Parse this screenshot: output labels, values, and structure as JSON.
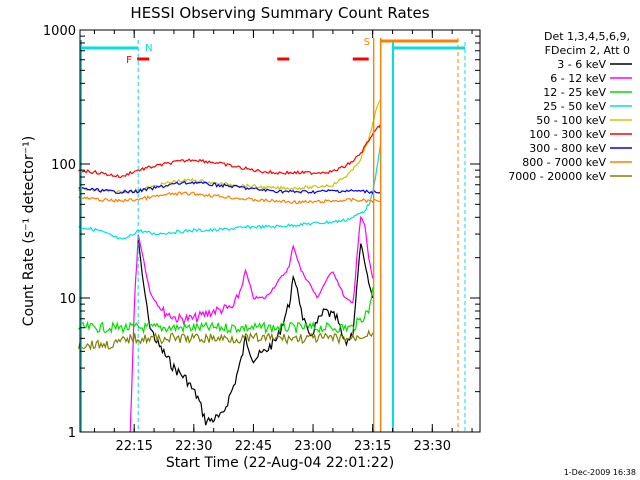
{
  "chart_data": {
    "type": "line",
    "title": "HESSI Observing Summary Count Rates",
    "xlabel": "Start Time (22-Aug-04 22:01:22)",
    "ylabel": "Count Rate (s⁻¹ detector⁻¹)",
    "yscale": "log",
    "xlim": [
      "22:01:22",
      "23:42:00"
    ],
    "ylim": [
      1,
      1000
    ],
    "x_tick_labels": [
      "22:15",
      "22:30",
      "22:45",
      "23:00",
      "23:15",
      "23:30"
    ],
    "y_tick_labels": [
      "1",
      "10",
      "100",
      "1000"
    ],
    "legend_header": [
      "Det 1,3,4,5,6,9,",
      "FDecim 2, Att 0"
    ],
    "legend_position": "right",
    "series": [
      {
        "name": "3 - 6 keV",
        "color": "#000000",
        "x": [
          "22:16",
          "22:17",
          "22:19",
          "22:21",
          "22:25",
          "22:28",
          "22:31",
          "22:33",
          "22:37",
          "22:40",
          "22:42",
          "22:43",
          "22:45",
          "22:48",
          "22:51",
          "22:54",
          "22:55",
          "22:56",
          "22:57",
          "22:59",
          "23:01",
          "23:03",
          "23:06",
          "23:08",
          "23:10",
          "23:11",
          "23:12",
          "23:13",
          "23:14",
          "23:15"
        ],
        "y": [
          28,
          15,
          6,
          4.5,
          3,
          2.5,
          1.8,
          1.2,
          1.3,
          2.2,
          3.5,
          5,
          3.5,
          4,
          5,
          9,
          14,
          12,
          8,
          5,
          6.5,
          8,
          7,
          4.5,
          5.5,
          12,
          26,
          18,
          13,
          10
        ]
      },
      {
        "name": "6 - 12 keV",
        "color": "#ff00ff",
        "x": [
          "22:14",
          "22:15",
          "22:16",
          "22:17",
          "22:19",
          "22:22",
          "22:26",
          "22:30",
          "22:35",
          "22:40",
          "22:42",
          "22:43",
          "22:45",
          "22:48",
          "22:51",
          "22:54",
          "22:55",
          "22:57",
          "22:59",
          "23:01",
          "23:03",
          "23:05",
          "23:08",
          "23:10",
          "23:11",
          "23:12",
          "23:13",
          "23:14",
          "23:15"
        ],
        "y": [
          1,
          8,
          30,
          22,
          11,
          8,
          7,
          7,
          8,
          8.5,
          12,
          16,
          10,
          10,
          13,
          17,
          25,
          16,
          13,
          10,
          13,
          16,
          10,
          9,
          20,
          40,
          35,
          20,
          14
        ]
      },
      {
        "name": "12 - 25 keV",
        "color": "#00e000",
        "x": [
          "22:01",
          "22:10",
          "22:14",
          "22:20",
          "22:30",
          "22:40",
          "22:50",
          "23:00",
          "23:10",
          "23:14",
          "23:15"
        ],
        "y": [
          6,
          6,
          6,
          6,
          6,
          6,
          6,
          6,
          6,
          8,
          12
        ]
      },
      {
        "name": "25 - 50 keV",
        "color": "#00e0e0",
        "x": [
          "22:01",
          "22:06",
          "22:12",
          "22:14",
          "22:16",
          "22:20",
          "22:25",
          "22:30",
          "22:35",
          "22:40",
          "22:45",
          "22:50",
          "22:55",
          "23:00",
          "23:05",
          "23:08",
          "23:10",
          "23:12",
          "23:13",
          "23:14",
          "23:15",
          "23:16",
          "23:17"
        ],
        "y": [
          34,
          32,
          27,
          29,
          32,
          30,
          31,
          32,
          32,
          33,
          34,
          34,
          35,
          36,
          37,
          38,
          40,
          43,
          45,
          50,
          60,
          90,
          140
        ]
      },
      {
        "name": "50 - 100 keV",
        "color": "#c8c800",
        "x": [
          "22:01",
          "22:10",
          "22:15",
          "22:20",
          "22:25",
          "22:30",
          "22:35",
          "22:40",
          "22:45",
          "22:50",
          "22:55",
          "23:00",
          "23:05",
          "23:08",
          "23:10",
          "23:12",
          "23:14",
          "23:15",
          "23:16",
          "23:17"
        ],
        "y": [
          65,
          62,
          63,
          68,
          74,
          76,
          72,
          70,
          68,
          66,
          66,
          67,
          70,
          80,
          90,
          110,
          150,
          200,
          260,
          300
        ]
      },
      {
        "name": "100 - 300 keV",
        "color": "#ff0000",
        "x": [
          "22:01",
          "22:06",
          "22:10",
          "22:12",
          "22:14",
          "22:16",
          "22:20",
          "22:25",
          "22:30",
          "22:35",
          "22:40",
          "22:45",
          "22:50",
          "22:55",
          "23:00",
          "23:05",
          "23:08",
          "23:10",
          "23:12",
          "23:14",
          "23:16",
          "23:17"
        ],
        "y": [
          90,
          86,
          82,
          80,
          86,
          90,
          96,
          103,
          108,
          103,
          96,
          90,
          86,
          86,
          86,
          88,
          96,
          105,
          120,
          150,
          180,
          200
        ]
      },
      {
        "name": "300 - 800 keV",
        "color": "#0000ff",
        "x": [
          "22:01",
          "22:10",
          "22:15",
          "22:20",
          "22:25",
          "22:30",
          "22:35",
          "22:40",
          "22:45",
          "22:50",
          "22:55",
          "23:00",
          "23:05",
          "23:10",
          "23:15",
          "23:17"
        ],
        "y": [
          66,
          62,
          62,
          66,
          71,
          73,
          70,
          68,
          65,
          63,
          62,
          62,
          63,
          63,
          62,
          62
        ]
      },
      {
        "name": "800 - 7000 keV",
        "color": "#ff8000",
        "x": [
          "22:01",
          "22:10",
          "22:15",
          "22:20",
          "22:25",
          "22:30",
          "22:35",
          "22:40",
          "22:45",
          "22:50",
          "22:55",
          "23:00",
          "23:05",
          "23:10",
          "23:15",
          "23:17"
        ],
        "y": [
          56,
          53,
          54,
          57,
          60,
          60,
          58,
          56,
          54,
          53,
          52,
          52,
          53,
          54,
          53,
          53
        ]
      },
      {
        "name": "7000 - 20000 keV",
        "color": "#808000",
        "x": [
          "22:01",
          "22:10",
          "22:14",
          "22:20",
          "22:30",
          "22:40",
          "22:50",
          "23:00",
          "23:10",
          "23:14",
          "23:15"
        ],
        "y": [
          4.5,
          4.5,
          5,
          5,
          5,
          5,
          5,
          5,
          5,
          5.5,
          5.5
        ]
      }
    ],
    "annotations": [
      {
        "label": "N",
        "color": "#00e0e0",
        "x": "22:16"
      },
      {
        "label": "F",
        "color": "#ff0000",
        "x": "22:16"
      },
      {
        "label": "S",
        "color": "#ff8000",
        "x": "23:16"
      }
    ],
    "footer": "1-Dec-2009 16:38"
  }
}
